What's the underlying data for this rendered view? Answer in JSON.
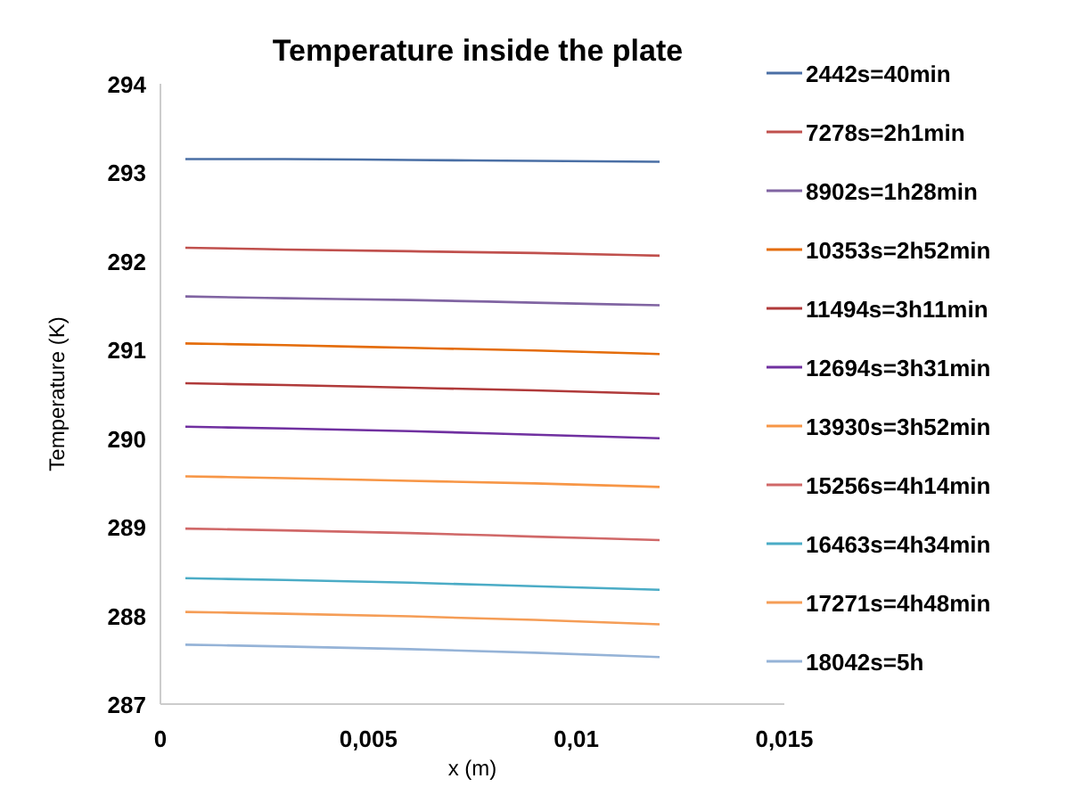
{
  "chart_data": {
    "type": "line",
    "title": "Temperature inside the plate",
    "xlabel": "x (m)",
    "ylabel": "Temperature (K)",
    "x": [
      0.0006,
      0.003,
      0.006,
      0.009,
      0.012
    ],
    "xlim": [
      0,
      0.015
    ],
    "xticks": [
      0,
      {
        "value": 0.005,
        "label": "0,005"
      },
      {
        "value": 0.01,
        "label": "0,01"
      },
      {
        "value": 0.015,
        "label": "0,015"
      }
    ],
    "ylim": [
      287,
      294
    ],
    "yticks": [
      287,
      288,
      289,
      290,
      291,
      292,
      293,
      294
    ],
    "grid": false,
    "legend": "right",
    "marker": "none",
    "line_style": "solid",
    "series": [
      {
        "name": "2442s=40min",
        "color": "#4a6fa5",
        "values": [
          293.15,
          293.15,
          293.14,
          293.13,
          293.12
        ]
      },
      {
        "name": "7278s=2h1min",
        "color": "#c0504d",
        "values": [
          292.15,
          292.13,
          292.11,
          292.09,
          292.06
        ]
      },
      {
        "name": "8902s=1h28min",
        "color": "#8064a2",
        "values": [
          291.6,
          291.58,
          291.56,
          291.53,
          291.5
        ]
      },
      {
        "name": "10353s=2h52min",
        "color": "#e46c0a",
        "values": [
          291.07,
          291.05,
          291.02,
          290.99,
          290.95
        ]
      },
      {
        "name": "11494s=3h11min",
        "color": "#b03a3a",
        "values": [
          290.62,
          290.6,
          290.57,
          290.54,
          290.5
        ]
      },
      {
        "name": "12694s=3h31min",
        "color": "#7030a0",
        "values": [
          290.13,
          290.11,
          290.08,
          290.04,
          290.0
        ]
      },
      {
        "name": "13930s=3h52min",
        "color": "#f79646",
        "values": [
          289.57,
          289.55,
          289.52,
          289.49,
          289.45
        ]
      },
      {
        "name": "15256s=4h14min",
        "color": "#d06868",
        "values": [
          288.98,
          288.96,
          288.93,
          288.89,
          288.85
        ]
      },
      {
        "name": "16463s=4h34min",
        "color": "#4bacc6",
        "values": [
          288.42,
          288.4,
          288.37,
          288.33,
          288.29
        ]
      },
      {
        "name": "17271s=4h48min",
        "color": "#f59d56",
        "values": [
          288.04,
          288.02,
          287.99,
          287.95,
          287.9
        ]
      },
      {
        "name": "18042s=5h",
        "color": "#95b3d7",
        "values": [
          287.67,
          287.65,
          287.62,
          287.58,
          287.53
        ]
      }
    ]
  }
}
